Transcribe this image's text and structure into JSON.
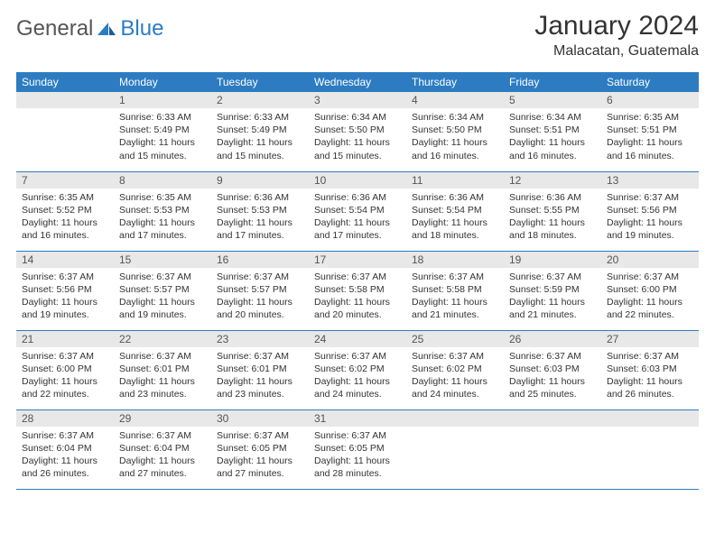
{
  "logo": {
    "textA": "General",
    "textB": "Blue"
  },
  "title": "January 2024",
  "location": "Malacatan, Guatemala",
  "colors": {
    "header_bg": "#2d7cc1",
    "header_text": "#ffffff",
    "daynum_bg": "#e8e8e8",
    "row_border": "#2d7cc1",
    "body_text": "#333333"
  },
  "weekdays": [
    "Sunday",
    "Monday",
    "Tuesday",
    "Wednesday",
    "Thursday",
    "Friday",
    "Saturday"
  ],
  "weeks": [
    [
      {
        "n": "",
        "sr": "",
        "ss": "",
        "dl": ""
      },
      {
        "n": "1",
        "sr": "Sunrise: 6:33 AM",
        "ss": "Sunset: 5:49 PM",
        "dl": "Daylight: 11 hours and 15 minutes."
      },
      {
        "n": "2",
        "sr": "Sunrise: 6:33 AM",
        "ss": "Sunset: 5:49 PM",
        "dl": "Daylight: 11 hours and 15 minutes."
      },
      {
        "n": "3",
        "sr": "Sunrise: 6:34 AM",
        "ss": "Sunset: 5:50 PM",
        "dl": "Daylight: 11 hours and 15 minutes."
      },
      {
        "n": "4",
        "sr": "Sunrise: 6:34 AM",
        "ss": "Sunset: 5:50 PM",
        "dl": "Daylight: 11 hours and 16 minutes."
      },
      {
        "n": "5",
        "sr": "Sunrise: 6:34 AM",
        "ss": "Sunset: 5:51 PM",
        "dl": "Daylight: 11 hours and 16 minutes."
      },
      {
        "n": "6",
        "sr": "Sunrise: 6:35 AM",
        "ss": "Sunset: 5:51 PM",
        "dl": "Daylight: 11 hours and 16 minutes."
      }
    ],
    [
      {
        "n": "7",
        "sr": "Sunrise: 6:35 AM",
        "ss": "Sunset: 5:52 PM",
        "dl": "Daylight: 11 hours and 16 minutes."
      },
      {
        "n": "8",
        "sr": "Sunrise: 6:35 AM",
        "ss": "Sunset: 5:53 PM",
        "dl": "Daylight: 11 hours and 17 minutes."
      },
      {
        "n": "9",
        "sr": "Sunrise: 6:36 AM",
        "ss": "Sunset: 5:53 PM",
        "dl": "Daylight: 11 hours and 17 minutes."
      },
      {
        "n": "10",
        "sr": "Sunrise: 6:36 AM",
        "ss": "Sunset: 5:54 PM",
        "dl": "Daylight: 11 hours and 17 minutes."
      },
      {
        "n": "11",
        "sr": "Sunrise: 6:36 AM",
        "ss": "Sunset: 5:54 PM",
        "dl": "Daylight: 11 hours and 18 minutes."
      },
      {
        "n": "12",
        "sr": "Sunrise: 6:36 AM",
        "ss": "Sunset: 5:55 PM",
        "dl": "Daylight: 11 hours and 18 minutes."
      },
      {
        "n": "13",
        "sr": "Sunrise: 6:37 AM",
        "ss": "Sunset: 5:56 PM",
        "dl": "Daylight: 11 hours and 19 minutes."
      }
    ],
    [
      {
        "n": "14",
        "sr": "Sunrise: 6:37 AM",
        "ss": "Sunset: 5:56 PM",
        "dl": "Daylight: 11 hours and 19 minutes."
      },
      {
        "n": "15",
        "sr": "Sunrise: 6:37 AM",
        "ss": "Sunset: 5:57 PM",
        "dl": "Daylight: 11 hours and 19 minutes."
      },
      {
        "n": "16",
        "sr": "Sunrise: 6:37 AM",
        "ss": "Sunset: 5:57 PM",
        "dl": "Daylight: 11 hours and 20 minutes."
      },
      {
        "n": "17",
        "sr": "Sunrise: 6:37 AM",
        "ss": "Sunset: 5:58 PM",
        "dl": "Daylight: 11 hours and 20 minutes."
      },
      {
        "n": "18",
        "sr": "Sunrise: 6:37 AM",
        "ss": "Sunset: 5:58 PM",
        "dl": "Daylight: 11 hours and 21 minutes."
      },
      {
        "n": "19",
        "sr": "Sunrise: 6:37 AM",
        "ss": "Sunset: 5:59 PM",
        "dl": "Daylight: 11 hours and 21 minutes."
      },
      {
        "n": "20",
        "sr": "Sunrise: 6:37 AM",
        "ss": "Sunset: 6:00 PM",
        "dl": "Daylight: 11 hours and 22 minutes."
      }
    ],
    [
      {
        "n": "21",
        "sr": "Sunrise: 6:37 AM",
        "ss": "Sunset: 6:00 PM",
        "dl": "Daylight: 11 hours and 22 minutes."
      },
      {
        "n": "22",
        "sr": "Sunrise: 6:37 AM",
        "ss": "Sunset: 6:01 PM",
        "dl": "Daylight: 11 hours and 23 minutes."
      },
      {
        "n": "23",
        "sr": "Sunrise: 6:37 AM",
        "ss": "Sunset: 6:01 PM",
        "dl": "Daylight: 11 hours and 23 minutes."
      },
      {
        "n": "24",
        "sr": "Sunrise: 6:37 AM",
        "ss": "Sunset: 6:02 PM",
        "dl": "Daylight: 11 hours and 24 minutes."
      },
      {
        "n": "25",
        "sr": "Sunrise: 6:37 AM",
        "ss": "Sunset: 6:02 PM",
        "dl": "Daylight: 11 hours and 24 minutes."
      },
      {
        "n": "26",
        "sr": "Sunrise: 6:37 AM",
        "ss": "Sunset: 6:03 PM",
        "dl": "Daylight: 11 hours and 25 minutes."
      },
      {
        "n": "27",
        "sr": "Sunrise: 6:37 AM",
        "ss": "Sunset: 6:03 PM",
        "dl": "Daylight: 11 hours and 26 minutes."
      }
    ],
    [
      {
        "n": "28",
        "sr": "Sunrise: 6:37 AM",
        "ss": "Sunset: 6:04 PM",
        "dl": "Daylight: 11 hours and 26 minutes."
      },
      {
        "n": "29",
        "sr": "Sunrise: 6:37 AM",
        "ss": "Sunset: 6:04 PM",
        "dl": "Daylight: 11 hours and 27 minutes."
      },
      {
        "n": "30",
        "sr": "Sunrise: 6:37 AM",
        "ss": "Sunset: 6:05 PM",
        "dl": "Daylight: 11 hours and 27 minutes."
      },
      {
        "n": "31",
        "sr": "Sunrise: 6:37 AM",
        "ss": "Sunset: 6:05 PM",
        "dl": "Daylight: 11 hours and 28 minutes."
      },
      {
        "n": "",
        "sr": "",
        "ss": "",
        "dl": ""
      },
      {
        "n": "",
        "sr": "",
        "ss": "",
        "dl": ""
      },
      {
        "n": "",
        "sr": "",
        "ss": "",
        "dl": ""
      }
    ]
  ]
}
